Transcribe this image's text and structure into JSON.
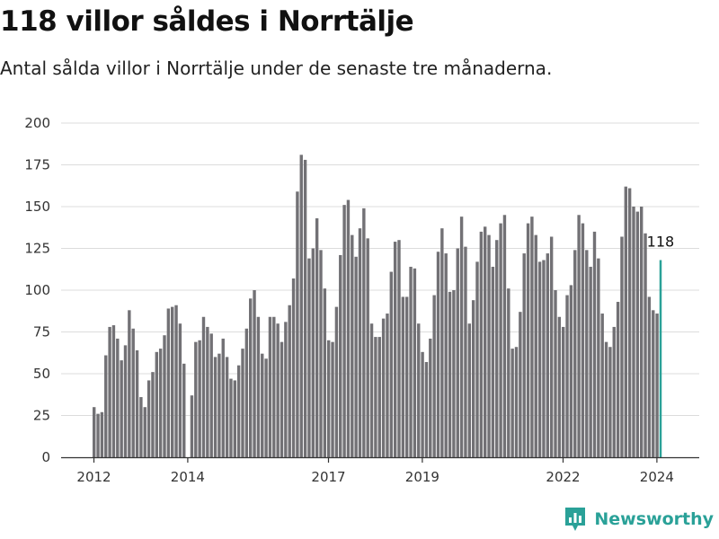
{
  "header": {
    "title": "118 villor såldes i Norrtälje",
    "subtitle": "Antal sålda villor i Norrtälje under de senaste tre månaderna."
  },
  "brand": {
    "name": "Newsworthy"
  },
  "colors": {
    "bar": "#727175",
    "highlight": "#2aa198",
    "grid": "#dcdcdc",
    "axis": "#333333"
  },
  "chart_data": {
    "type": "bar",
    "ylim": [
      0,
      200
    ],
    "yticks": [
      0,
      25,
      50,
      75,
      100,
      125,
      150,
      175,
      200
    ],
    "xticks": [
      {
        "label": "2012",
        "year": 2012
      },
      {
        "label": "2014",
        "year": 2014
      },
      {
        "label": "2017",
        "year": 2017
      },
      {
        "label": "2019",
        "year": 2019
      },
      {
        "label": "2022",
        "year": 2022
      },
      {
        "label": "2024",
        "year": 2024
      }
    ],
    "start": "2012-01",
    "values": [
      30,
      26,
      27,
      61,
      78,
      79,
      71,
      58,
      67,
      88,
      77,
      64,
      36,
      30,
      46,
      51,
      63,
      65,
      73,
      89,
      90,
      91,
      80,
      56,
      0,
      37,
      69,
      70,
      84,
      78,
      74,
      60,
      62,
      71,
      60,
      47,
      46,
      55,
      65,
      77,
      95,
      100,
      84,
      62,
      59,
      84,
      84,
      80,
      69,
      81,
      91,
      107,
      159,
      181,
      178,
      119,
      125,
      143,
      124,
      101,
      70,
      69,
      90,
      121,
      151,
      154,
      133,
      120,
      137,
      149,
      131,
      80,
      72,
      72,
      83,
      86,
      111,
      129,
      130,
      96,
      96,
      114,
      113,
      80,
      63,
      57,
      71,
      97,
      123,
      137,
      122,
      99,
      100,
      125,
      144,
      126,
      80,
      94,
      117,
      135,
      138,
      133,
      114,
      130,
      140,
      145,
      101,
      65,
      66,
      87,
      122,
      140,
      144,
      133,
      117,
      118,
      122,
      132,
      100,
      84,
      78,
      97,
      103,
      124,
      145,
      140,
      124,
      114,
      135,
      119,
      86,
      69,
      66,
      78,
      93,
      132,
      162,
      161,
      150,
      147,
      150,
      134,
      96,
      88,
      86,
      118
    ],
    "highlight_last": true,
    "last_label": "118"
  }
}
